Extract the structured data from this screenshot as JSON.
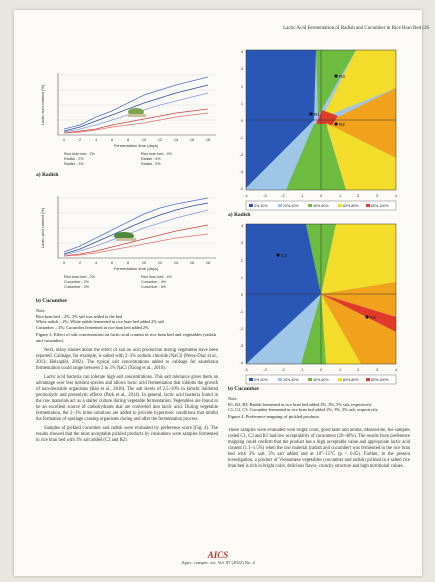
{
  "running_head": "Lactic Acid Fermentation of Radish and Cucumber in Rice Bran Bed (26",
  "left_column": {
    "chart_radish": {
      "panel_label": "a) Radish",
      "ylabel": "Lactic acid content (%)",
      "xlabel": "Fermentation time (days)",
      "x_ticks": [
        "0",
        "2",
        "4",
        "6",
        "8",
        "10",
        "12",
        "14",
        "16",
        "18",
        "20"
      ],
      "legend": [
        "Rice bran bed - 2%",
        "Rice bran bed - 4%",
        "Radish - 2%",
        "Radish - 4%",
        "Radish - 3%",
        "Radish - 5%"
      ]
    },
    "chart_cucumber": {
      "panel_label": "b) Cucumber",
      "ylabel": "Lactic acid content (%)",
      "xlabel": "Fermentation time (days)",
      "x_ticks": [
        "0",
        "2",
        "4",
        "6",
        "8",
        "10",
        "12",
        "14",
        "16",
        "18",
        "20"
      ],
      "legend": [
        "Rice bran bed - 2%",
        "Rice bran bed - 4%",
        "Cucumber - 2%",
        "Cucumber - 4%",
        "Cucumber - 3%",
        "Cucumber - 5%"
      ]
    },
    "notes": [
      "Note:",
      "Rice bran bed – 2%, 3% salt was added to the bed",
      "White radish – 2%: White radish fermented in rice bran bed added 2% salt",
      "Cucumber – 2%: Cucumber fermented in rice bran bed added 2%"
    ],
    "figure_caption": "Figure 3. Effect of salt concentration on lactic acid content in rice bran bed and vegetables (radish and cucumber)",
    "paragraphs": [
      "Next, many studies about the effect of salt on acid production during vegetables have been reported. Cabbage, for example, is salted with 2–3% sodium chloride (NaCl) (Pérez-Díaz et al., 2013; Holzapfel, 2002). The typical salt concentrations added to cabbage for sauerkraut fermentation could range between 2 to 3% NaCl (Xiong et al., 2016).",
      "Lactic acid bacteria can tolerate high salt concentrations. This salt tolerance gives them an advantage over less tolerant species and allows lactic acid fermentation that inhibits the growth of non-desirable organisms (Bao et al., 2016). The salt levels of 2.5–10% in kimchi inhibited pectinolytic and proteolytic effects (Park et al., 2014). In general, lactic acid bacteria found in the raw materials act as a starter culture during vegetable fermentation. Vegetables are found to be an excellent source of carbohydrates that are converted into lactic acid. During vegetable fermentation, the 2–3% brine solutions are added to provide hypertonic conditions that inhibit the formation of spoilage causing organisms during and after the fermentation process.",
      "Samples of pickled cucumber and radish were evaluated by preference score (Fig. 4). The results showed that the most acceptable pickled products by consumers were samples fermented in rice bran bed with 3% salt added (C2 and R2)."
    ]
  },
  "right_column": {
    "map_radish": {
      "panel_label": "a) Radish",
      "x_ticks": [
        "-4",
        "-3",
        "-2",
        "-1",
        "0",
        "1",
        "2",
        "3",
        "4"
      ],
      "y_ticks": [
        "4",
        "3",
        "2",
        "1",
        "0",
        "-1",
        "-2",
        "-3",
        "-4"
      ],
      "points": [
        {
          "label": "R3",
          "x": 0.8,
          "y": 3.2
        },
        {
          "label": "R1",
          "x": -0.7,
          "y": 0.4
        },
        {
          "label": "R2",
          "x": 0.9,
          "y": -0.3
        }
      ],
      "legend": [
        "0%-20%",
        "20%-40%",
        "40%-60%",
        "60%-80%",
        "80%-100%"
      ]
    },
    "map_cucumber": {
      "panel_label": "b) Cucumber",
      "x_ticks": [
        "-4",
        "-3",
        "-2",
        "-1",
        "0",
        "1",
        "2",
        "3",
        "4"
      ],
      "y_ticks": [
        "4",
        "3",
        "2",
        "1",
        "0",
        "-1",
        "-2",
        "-3",
        "-4"
      ],
      "points": [
        {
          "label": "C3",
          "x": -2.3,
          "y": 2.2
        },
        {
          "label": "C2",
          "x": 2.4,
          "y": -1.3
        }
      ],
      "legend": [
        "0%-20%",
        "20%-40%",
        "40%-60%",
        "60%-80%",
        "80%-100%"
      ]
    },
    "notes": [
      "Note:",
      "R1, R2, R3: Radish fermented in rice bran bed added 2%, 3%, 5% salt, respectively",
      "C1, C2, C3: Cucumber fermented in rice bran bed added 2%, 3%, 5% salt, respectively"
    ],
    "figure_caption": "Figure 4. Preference mapping of pickled products",
    "paragraphs": [
      "These samples were evaluated with bright color, good taste and aroma. Meanwhile, the samples coded C1, C3 and R1 had low acceptability of consumers (20–40%). The results from preference mapping could confirm that the product has a high acceptable value and appropriate lactic acid content (1.1–1.5%) when the raw material (radish and cucumber) was fermented in the rice bran bed with 3% salt. 3% salt added and at 10°–15°C (p < 0.05). Further, in the present investigation, a product of Vietnamese vegetables (cucumber and radish) pickled in a salted rice bran bed is rich in bright color, delicious flavor, crunchy structure and high nutritional values."
    ]
  },
  "footer": {
    "brand": "AICS",
    "journal": "Agric. conspec. sci. Vol. 87 (2022) No. 4"
  },
  "colors": {
    "red": "#e03a2a",
    "orange": "#f1a21d",
    "yellow": "#f4dd2a",
    "green": "#6dbb3f",
    "lightblue": "#9fc6e6",
    "blue": "#2a57b6",
    "paper": "#fbfaf6"
  }
}
